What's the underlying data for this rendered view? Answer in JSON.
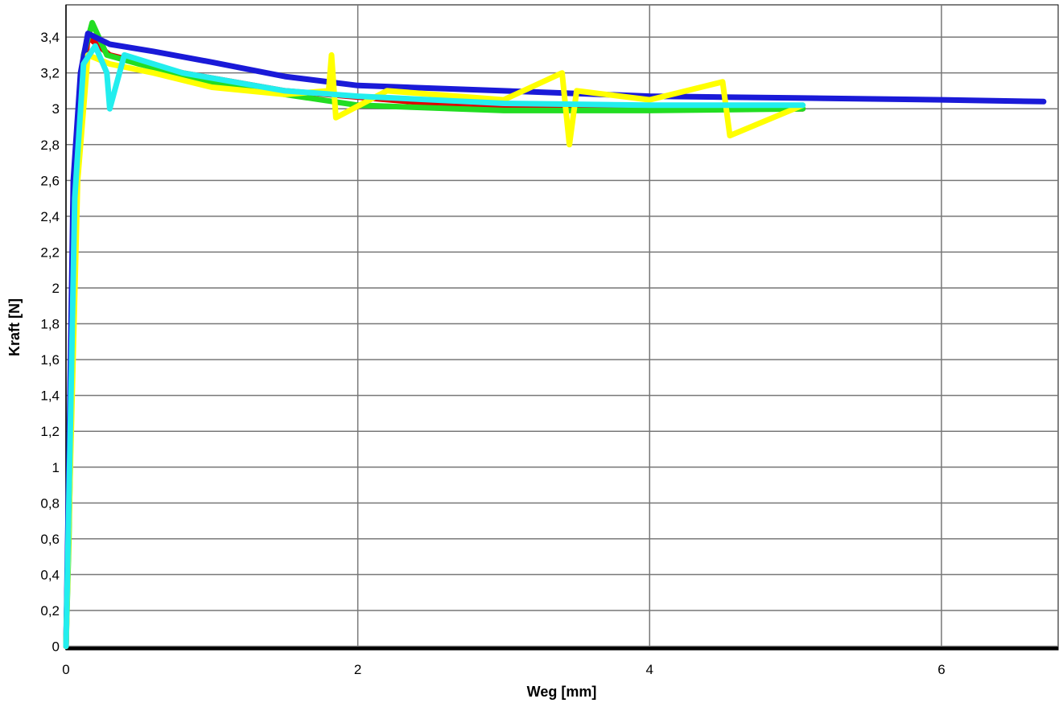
{
  "chart_data": {
    "type": "line",
    "x_label": "Weg [mm]",
    "y_label": "Kraft [N]",
    "xlim": [
      0,
      6.8
    ],
    "ylim": [
      -0.02,
      3.58
    ],
    "xticks": [
      0,
      2,
      4,
      6
    ],
    "yticks": [
      0,
      {
        "value": 0.2,
        "label": "0,2"
      },
      {
        "value": 0.4,
        "label": "0,4"
      },
      {
        "value": 0.6,
        "label": "0,6"
      },
      {
        "value": 0.8,
        "label": "0,8"
      },
      1,
      {
        "value": 1.2,
        "label": "1,2"
      },
      {
        "value": 1.4,
        "label": "1,4"
      },
      {
        "value": 1.6,
        "label": "1,6"
      },
      {
        "value": 1.8,
        "label": "1,8"
      },
      2,
      {
        "value": 2.2,
        "label": "2,2"
      },
      {
        "value": 2.4,
        "label": "2,4"
      },
      {
        "value": 2.6,
        "label": "2,6"
      },
      {
        "value": 2.8,
        "label": "2,8"
      },
      3,
      {
        "value": 3.2,
        "label": "3,2"
      },
      {
        "value": 3.4,
        "label": "3,4"
      }
    ],
    "grid": true,
    "series": [
      {
        "color": "#e00000",
        "x": [
          0,
          0.03,
          0.08,
          0.15,
          0.3,
          0.8,
          1.5,
          2.5,
          3.5,
          4.5,
          5.05
        ],
        "values": [
          0,
          1.2,
          2.8,
          3.4,
          3.3,
          3.2,
          3.1,
          3.03,
          3.0,
          3.0,
          3.0
        ]
      },
      {
        "color": "#22dd22",
        "x": [
          0,
          0.02,
          0.06,
          0.12,
          0.18,
          0.28,
          0.5,
          1,
          1.5,
          2,
          3,
          4,
          5.05
        ],
        "values": [
          0,
          0.6,
          2.4,
          3.3,
          3.48,
          3.3,
          3.25,
          3.15,
          3.08,
          3.02,
          2.99,
          2.99,
          3.0
        ]
      },
      {
        "color": "#1a1ad8",
        "x": [
          0,
          0.02,
          0.05,
          0.1,
          0.15,
          0.3,
          0.6,
          1.0,
          1.5,
          2,
          3,
          4,
          5,
          6,
          6.7
        ],
        "values": [
          0,
          1.0,
          2.6,
          3.2,
          3.42,
          3.36,
          3.32,
          3.26,
          3.18,
          3.13,
          3.1,
          3.07,
          3.06,
          3.05,
          3.04
        ]
      },
      {
        "color": "#ffff00",
        "x": [
          0,
          0.03,
          0.08,
          0.15,
          0.3,
          0.6,
          1,
          1.5,
          1.8,
          1.82,
          1.85,
          2.2,
          3,
          3.4,
          3.45,
          3.5,
          4,
          4.5,
          4.55,
          5.05
        ],
        "values": [
          0,
          1,
          2.6,
          3.3,
          3.25,
          3.2,
          3.12,
          3.08,
          3.1,
          3.3,
          2.95,
          3.1,
          3.05,
          3.2,
          2.8,
          3.1,
          3.05,
          3.15,
          2.85,
          3.02
        ]
      },
      {
        "color": "#22eeee",
        "x": [
          0,
          0.02,
          0.06,
          0.12,
          0.2,
          0.28,
          0.3,
          0.4,
          0.8,
          1.5,
          2,
          3,
          4,
          5.05
        ],
        "values": [
          0,
          0.8,
          2.5,
          3.25,
          3.35,
          3.2,
          3.0,
          3.3,
          3.2,
          3.1,
          3.07,
          3.03,
          3.02,
          3.02
        ]
      }
    ]
  }
}
